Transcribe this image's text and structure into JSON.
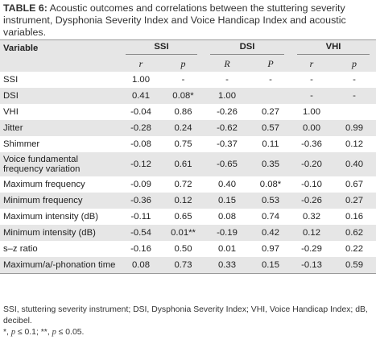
{
  "caption": {
    "label": "TABLE 6:",
    "text": " Acoustic outcomes and correlations between the stuttering severity instrument, Dysphonia Severity Index and Voice Handicap Index and acoustic variables."
  },
  "header": {
    "variable": "Variable",
    "groups": [
      "SSI",
      "DSI",
      "VHI"
    ],
    "sub": [
      "r",
      "p",
      "R",
      "P",
      "r",
      "p"
    ]
  },
  "rows": [
    {
      "label": "SSI",
      "cells": [
        "1.00",
        "-",
        "-",
        "-",
        "-",
        "-"
      ]
    },
    {
      "label": "DSI",
      "cells": [
        "0.41",
        "0.08*",
        "1.00",
        "",
        "-",
        "-"
      ]
    },
    {
      "label": "VHI",
      "cells": [
        "-0.04",
        "0.86",
        "-0.26",
        "0.27",
        "1.00",
        ""
      ]
    },
    {
      "label": "Jitter",
      "cells": [
        "-0.28",
        "0.24",
        "-0.62",
        "0.57",
        "0.00",
        "0.99"
      ]
    },
    {
      "label": "Shimmer",
      "cells": [
        "-0.08",
        "0.75",
        "-0.37",
        "0.11",
        "-0.36",
        "0.12"
      ]
    },
    {
      "label": "Voice fundamental frequency variation",
      "cells": [
        "-0.12",
        "0.61",
        "-0.65",
        "0.35",
        "-0.20",
        "0.40"
      ]
    },
    {
      "label": "Maximum frequency",
      "cells": [
        "-0.09",
        "0.72",
        "0.40",
        "0.08*",
        "-0.10",
        "0.67"
      ]
    },
    {
      "label": "Minimum frequency",
      "cells": [
        "-0.36",
        "0.12",
        "0.15",
        "0.53",
        "-0.26",
        "0.27"
      ]
    },
    {
      "label": "Maximum intensity (dB)",
      "cells": [
        "-0.11",
        "0.65",
        "0.08",
        "0.74",
        "0.32",
        "0.16"
      ]
    },
    {
      "label": "Minimum intensity (dB)",
      "cells": [
        "-0.54",
        "0.01**",
        "-0.19",
        "0.42",
        "0.12",
        "0.62"
      ]
    },
    {
      "label": "s–z ratio",
      "cells": [
        "-0.16",
        "0.50",
        "0.01",
        "0.97",
        "-0.29",
        "0.22"
      ]
    },
    {
      "label": "Maximum/a/-phonation time",
      "cells": [
        "0.08",
        "0.73",
        "0.33",
        "0.15",
        "-0.13",
        "0.59"
      ]
    }
  ],
  "notes": {
    "abbrev": "SSI, stuttering severity instrument; DSI, Dysphonia Severity Index; VHI, Voice Handicap Index; dB, decibel.",
    "sig1_mark": "*, ",
    "sig1_p": "p",
    "sig1_rest": " ≤ 0.1; **, ",
    "sig2_p": "p",
    "sig2_rest": " ≤ 0.05."
  },
  "colors": {
    "shade": "#e6e6e6",
    "rule": "#9a9a9a"
  }
}
